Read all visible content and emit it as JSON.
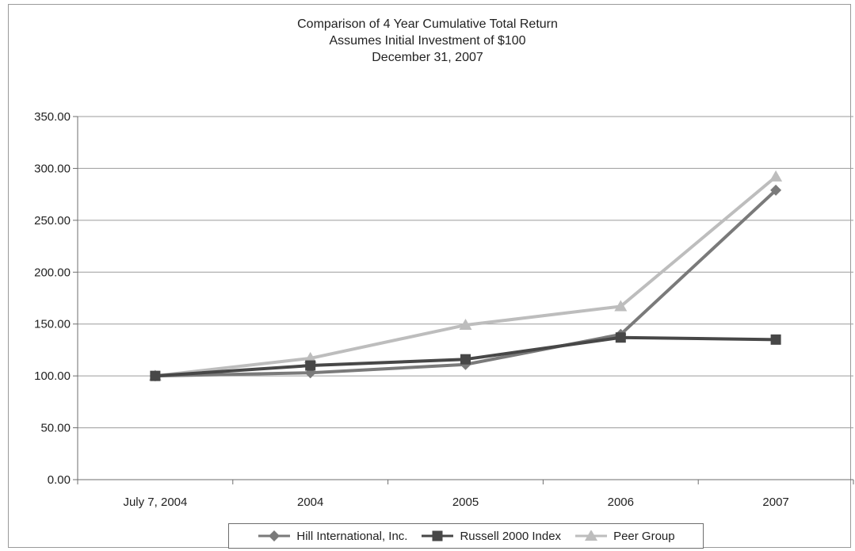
{
  "chart_data": {
    "type": "line",
    "title": "Comparison of 4 Year Cumulative Total Return",
    "subtitle": "Assumes Initial Investment of $100",
    "subtitle2": "December 31, 2007",
    "categories": [
      "July 7, 2004",
      "2004",
      "2005",
      "2006",
      "2007"
    ],
    "ylim": [
      0,
      350
    ],
    "yticks": [
      "0.00",
      "50.00",
      "100.00",
      "150.00",
      "200.00",
      "250.00",
      "300.00",
      "350.00"
    ],
    "grid": true,
    "legend_position": "bottom",
    "series": [
      {
        "name": "Hill International, Inc.",
        "marker": "diamond",
        "color": "#7a7a7a",
        "values": [
          100,
          103,
          111,
          140,
          279
        ]
      },
      {
        "name": "Russell 2000 Index",
        "marker": "square",
        "color": "#474747",
        "values": [
          100,
          110,
          116,
          137,
          135
        ]
      },
      {
        "name": "Peer Group",
        "marker": "triangle",
        "color": "#bdbdbd",
        "values": [
          100,
          117,
          149,
          167,
          292
        ]
      }
    ]
  }
}
